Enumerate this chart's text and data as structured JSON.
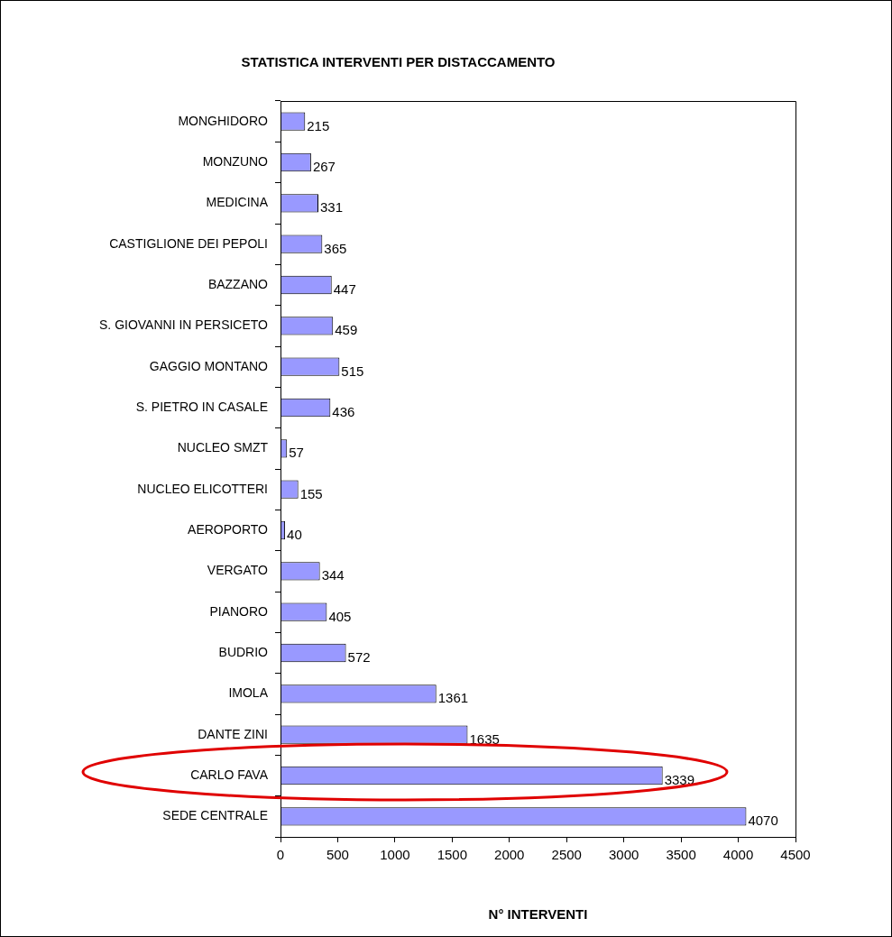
{
  "chart_data": {
    "type": "bar",
    "orientation": "horizontal",
    "title": "STATISTICA INTERVENTI PER DISTACCAMENTO",
    "xlabel": "N° INTERVENTI",
    "categories": [
      "MONGHIDORO",
      "MONZUNO",
      "MEDICINA",
      "CASTIGLIONE DEI PEPOLI",
      "BAZZANO",
      "S. GIOVANNI IN PERSICETO",
      "GAGGIO MONTANO",
      "S. PIETRO IN CASALE",
      "NUCLEO SMZT",
      "NUCLEO ELICOTTERI",
      "AEROPORTO",
      "VERGATO",
      "PIANORO",
      "BUDRIO",
      "IMOLA",
      "DANTE ZINI",
      "CARLO FAVA",
      "SEDE CENTRALE"
    ],
    "values": [
      215,
      267,
      331,
      365,
      447,
      459,
      515,
      436,
      57,
      155,
      40,
      344,
      405,
      572,
      1361,
      1635,
      3339,
      4070
    ],
    "color": "#9999ff",
    "xlim": [
      0,
      4500
    ],
    "xticks": [
      0,
      500,
      1000,
      1500,
      2000,
      2500,
      3000,
      3500,
      4000,
      4500
    ],
    "grid": false,
    "legend": false,
    "data_labels": true
  }
}
